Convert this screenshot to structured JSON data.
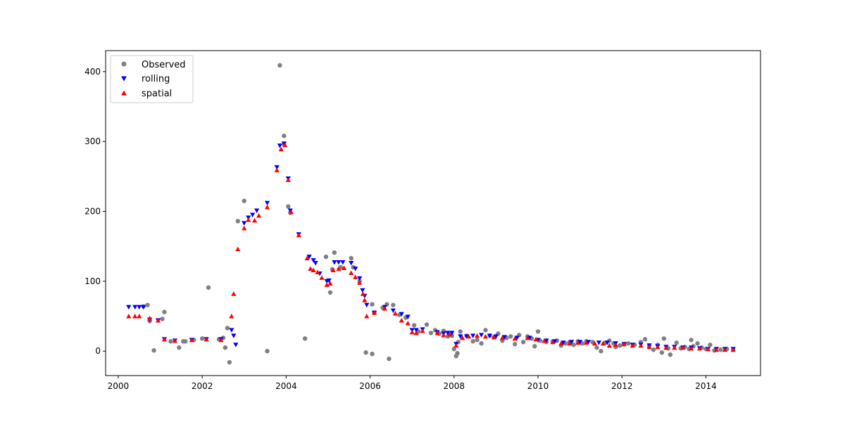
{
  "chart_data": {
    "type": "scatter",
    "title": "",
    "xlabel": "",
    "ylabel": "",
    "xlim": [
      1999.7,
      2015.3
    ],
    "ylim": [
      -35,
      430
    ],
    "xticks": [
      2000,
      2002,
      2004,
      2006,
      2008,
      2010,
      2012,
      2014
    ],
    "xtick_labels": [
      "2000",
      "2002",
      "2004",
      "2006",
      "2008",
      "2010",
      "2012",
      "2014"
    ],
    "yticks": [
      0,
      100,
      200,
      300,
      400
    ],
    "ytick_labels": [
      "0",
      "100",
      "200",
      "300",
      "400"
    ],
    "grid": false,
    "legend_position": "top-left",
    "series": [
      {
        "name": "Observed",
        "marker": "circle",
        "color": "#808080",
        "points": [
          [
            2000.7,
            66
          ],
          [
            2000.6,
            64
          ],
          [
            2000.75,
            43
          ],
          [
            2000.85,
            1
          ],
          [
            2001.05,
            46
          ],
          [
            2001.1,
            56
          ],
          [
            2001.25,
            14
          ],
          [
            2001.45,
            5
          ],
          [
            2001.55,
            14
          ],
          [
            2001.6,
            14
          ],
          [
            2001.8,
            16
          ],
          [
            2002.0,
            18
          ],
          [
            2002.15,
            91
          ],
          [
            2002.4,
            17
          ],
          [
            2002.5,
            19
          ],
          [
            2002.55,
            5
          ],
          [
            2002.6,
            33
          ],
          [
            2002.65,
            -16
          ],
          [
            2002.85,
            186
          ],
          [
            2003.0,
            215
          ],
          [
            2003.55,
            0
          ],
          [
            2003.85,
            409
          ],
          [
            2003.95,
            296
          ],
          [
            2003.95,
            308
          ],
          [
            2004.05,
            207
          ],
          [
            2004.1,
            198
          ],
          [
            2004.45,
            18
          ],
          [
            2004.95,
            135
          ],
          [
            2005.05,
            84
          ],
          [
            2005.1,
            117
          ],
          [
            2005.15,
            141
          ],
          [
            2005.3,
            120
          ],
          [
            2005.55,
            133
          ],
          [
            2005.6,
            120
          ],
          [
            2005.75,
            100
          ],
          [
            2005.9,
            -2
          ],
          [
            2006.05,
            -4
          ],
          [
            2006.05,
            67
          ],
          [
            2006.1,
            55
          ],
          [
            2006.3,
            62
          ],
          [
            2006.4,
            67
          ],
          [
            2006.45,
            -11
          ],
          [
            2006.55,
            66
          ],
          [
            2006.7,
            52
          ],
          [
            2006.85,
            48
          ],
          [
            2007.05,
            37
          ],
          [
            2007.15,
            28
          ],
          [
            2007.35,
            38
          ],
          [
            2007.45,
            26
          ],
          [
            2007.55,
            30
          ],
          [
            2007.65,
            25
          ],
          [
            2007.75,
            29
          ],
          [
            2007.85,
            21
          ],
          [
            2007.95,
            22
          ],
          [
            2008.0,
            3
          ],
          [
            2008.05,
            -7
          ],
          [
            2008.08,
            -3
          ],
          [
            2008.1,
            13
          ],
          [
            2008.15,
            28
          ],
          [
            2008.3,
            22
          ],
          [
            2008.45,
            14
          ],
          [
            2008.55,
            16
          ],
          [
            2008.65,
            11
          ],
          [
            2008.75,
            30
          ],
          [
            2008.85,
            22
          ],
          [
            2008.95,
            20
          ],
          [
            2009.05,
            25
          ],
          [
            2009.15,
            15
          ],
          [
            2009.25,
            19
          ],
          [
            2009.35,
            21
          ],
          [
            2009.45,
            10
          ],
          [
            2009.55,
            23
          ],
          [
            2009.65,
            13
          ],
          [
            2009.75,
            21
          ],
          [
            2009.85,
            18
          ],
          [
            2009.92,
            7
          ],
          [
            2010.0,
            28
          ],
          [
            2010.05,
            15
          ],
          [
            2010.2,
            13
          ],
          [
            2010.35,
            14
          ],
          [
            2010.45,
            15
          ],
          [
            2010.55,
            8
          ],
          [
            2010.65,
            11
          ],
          [
            2010.75,
            13
          ],
          [
            2010.85,
            9
          ],
          [
            2010.95,
            14
          ],
          [
            2011.05,
            11
          ],
          [
            2011.15,
            14
          ],
          [
            2011.3,
            13
          ],
          [
            2011.4,
            5
          ],
          [
            2011.5,
            0
          ],
          [
            2011.6,
            12
          ],
          [
            2011.7,
            15
          ],
          [
            2011.8,
            11
          ],
          [
            2011.85,
            6
          ],
          [
            2011.95,
            8
          ],
          [
            2012.05,
            10
          ],
          [
            2012.15,
            11
          ],
          [
            2012.3,
            9
          ],
          [
            2012.45,
            13
          ],
          [
            2012.55,
            17
          ],
          [
            2012.65,
            7
          ],
          [
            2012.75,
            2
          ],
          [
            2012.85,
            9
          ],
          [
            2012.95,
            -2
          ],
          [
            2013.0,
            18
          ],
          [
            2013.1,
            4
          ],
          [
            2013.15,
            -5
          ],
          [
            2013.3,
            12
          ],
          [
            2013.4,
            4
          ],
          [
            2013.5,
            6
          ],
          [
            2013.6,
            3
          ],
          [
            2013.65,
            16
          ],
          [
            2013.7,
            7
          ],
          [
            2013.8,
            11
          ],
          [
            2013.9,
            5
          ],
          [
            2014.0,
            3
          ],
          [
            2014.1,
            9
          ],
          [
            2014.2,
            1
          ],
          [
            2014.35,
            2
          ],
          [
            2014.5,
            3
          ],
          [
            2014.65,
            2
          ]
        ]
      },
      {
        "name": "rolling",
        "marker": "triangle-down",
        "color": "#0000ff",
        "points": [
          [
            2000.25,
            63
          ],
          [
            2000.4,
            63
          ],
          [
            2000.5,
            63
          ],
          [
            2000.6,
            63
          ],
          [
            2000.75,
            45
          ],
          [
            2000.95,
            44
          ],
          [
            2001.1,
            17
          ],
          [
            2001.35,
            15
          ],
          [
            2001.75,
            16
          ],
          [
            2002.1,
            17
          ],
          [
            2002.45,
            17
          ],
          [
            2002.7,
            30
          ],
          [
            2002.75,
            22
          ],
          [
            2002.8,
            9
          ],
          [
            2003.0,
            183
          ],
          [
            2003.1,
            191
          ],
          [
            2003.2,
            195
          ],
          [
            2003.3,
            201
          ],
          [
            2003.55,
            212
          ],
          [
            2003.78,
            263
          ],
          [
            2003.85,
            294
          ],
          [
            2003.95,
            297
          ],
          [
            2004.05,
            247
          ],
          [
            2004.1,
            201
          ],
          [
            2004.3,
            167
          ],
          [
            2004.55,
            135
          ],
          [
            2004.65,
            130
          ],
          [
            2004.7,
            126
          ],
          [
            2004.8,
            111
          ],
          [
            2004.97,
            100
          ],
          [
            2005.02,
            101
          ],
          [
            2005.15,
            127
          ],
          [
            2005.25,
            127
          ],
          [
            2005.35,
            127
          ],
          [
            2005.55,
            126
          ],
          [
            2005.65,
            118
          ],
          [
            2005.75,
            104
          ],
          [
            2005.82,
            87
          ],
          [
            2005.87,
            79
          ],
          [
            2005.92,
            66
          ],
          [
            2006.1,
            55
          ],
          [
            2006.35,
            63
          ],
          [
            2006.55,
            58
          ],
          [
            2006.75,
            53
          ],
          [
            2006.9,
            49
          ],
          [
            2007.0,
            30
          ],
          [
            2007.1,
            30
          ],
          [
            2007.25,
            31
          ],
          [
            2007.6,
            27
          ],
          [
            2007.75,
            25
          ],
          [
            2007.85,
            26
          ],
          [
            2007.95,
            26
          ],
          [
            2008.05,
            10
          ],
          [
            2008.15,
            21
          ],
          [
            2008.3,
            21
          ],
          [
            2008.45,
            22
          ],
          [
            2008.65,
            23
          ],
          [
            2008.85,
            22
          ],
          [
            2009.0,
            21
          ],
          [
            2009.2,
            20
          ],
          [
            2009.5,
            19
          ],
          [
            2009.8,
            19
          ],
          [
            2010.0,
            16
          ],
          [
            2010.2,
            15
          ],
          [
            2010.4,
            14
          ],
          [
            2010.6,
            12
          ],
          [
            2010.8,
            13
          ],
          [
            2011.0,
            13
          ],
          [
            2011.2,
            13
          ],
          [
            2011.45,
            12
          ],
          [
            2011.65,
            12
          ],
          [
            2011.85,
            11
          ],
          [
            2012.05,
            10
          ],
          [
            2012.25,
            9
          ],
          [
            2012.45,
            9
          ],
          [
            2012.65,
            8
          ],
          [
            2012.85,
            7
          ],
          [
            2013.05,
            6
          ],
          [
            2013.25,
            6
          ],
          [
            2013.45,
            5
          ],
          [
            2013.65,
            5
          ],
          [
            2013.85,
            4
          ],
          [
            2014.05,
            3
          ],
          [
            2014.25,
            3
          ],
          [
            2014.45,
            3
          ],
          [
            2014.65,
            3
          ]
        ]
      },
      {
        "name": "spatial",
        "marker": "triangle-up",
        "color": "#ff0000",
        "points": [
          [
            2000.25,
            50
          ],
          [
            2000.4,
            50
          ],
          [
            2000.5,
            50
          ],
          [
            2000.75,
            47
          ],
          [
            2000.95,
            44
          ],
          [
            2001.1,
            17
          ],
          [
            2001.35,
            15
          ],
          [
            2001.75,
            16
          ],
          [
            2002.1,
            17
          ],
          [
            2002.45,
            16
          ],
          [
            2002.7,
            50
          ],
          [
            2002.75,
            82
          ],
          [
            2002.85,
            146
          ],
          [
            2003.0,
            176
          ],
          [
            2003.1,
            188
          ],
          [
            2003.25,
            187
          ],
          [
            2003.35,
            194
          ],
          [
            2003.55,
            206
          ],
          [
            2003.78,
            259
          ],
          [
            2003.88,
            289
          ],
          [
            2003.97,
            295
          ],
          [
            2004.05,
            245
          ],
          [
            2004.12,
            199
          ],
          [
            2004.3,
            166
          ],
          [
            2004.5,
            133
          ],
          [
            2004.58,
            118
          ],
          [
            2004.65,
            116
          ],
          [
            2004.75,
            113
          ],
          [
            2004.85,
            105
          ],
          [
            2004.97,
            95
          ],
          [
            2005.05,
            97
          ],
          [
            2005.12,
            116
          ],
          [
            2005.25,
            118
          ],
          [
            2005.38,
            119
          ],
          [
            2005.55,
            112
          ],
          [
            2005.65,
            106
          ],
          [
            2005.75,
            98
          ],
          [
            2005.83,
            82
          ],
          [
            2005.87,
            73
          ],
          [
            2005.92,
            50
          ],
          [
            2006.1,
            55
          ],
          [
            2006.35,
            61
          ],
          [
            2006.6,
            54
          ],
          [
            2006.75,
            44
          ],
          [
            2006.9,
            40
          ],
          [
            2007.0,
            27
          ],
          [
            2007.1,
            26
          ],
          [
            2007.25,
            29
          ],
          [
            2007.6,
            26
          ],
          [
            2007.75,
            23
          ],
          [
            2007.9,
            24
          ],
          [
            2008.05,
            8
          ],
          [
            2008.2,
            19
          ],
          [
            2008.35,
            21
          ],
          [
            2008.55,
            22
          ],
          [
            2008.75,
            21
          ],
          [
            2008.95,
            20
          ],
          [
            2009.15,
            19
          ],
          [
            2009.45,
            18
          ],
          [
            2009.75,
            19
          ],
          [
            2009.95,
            17
          ],
          [
            2010.15,
            15
          ],
          [
            2010.35,
            13
          ],
          [
            2010.55,
            11
          ],
          [
            2010.75,
            11
          ],
          [
            2010.95,
            12
          ],
          [
            2011.15,
            12
          ],
          [
            2011.35,
            11
          ],
          [
            2011.55,
            11
          ],
          [
            2011.7,
            8
          ],
          [
            2011.85,
            9
          ],
          [
            2012.05,
            10
          ],
          [
            2012.25,
            8
          ],
          [
            2012.45,
            8
          ],
          [
            2012.65,
            6
          ],
          [
            2012.85,
            6
          ],
          [
            2013.05,
            5
          ],
          [
            2013.25,
            5
          ],
          [
            2013.45,
            5
          ],
          [
            2013.65,
            4
          ],
          [
            2013.85,
            4
          ],
          [
            2014.05,
            3
          ],
          [
            2014.25,
            2
          ],
          [
            2014.45,
            2
          ],
          [
            2014.65,
            2
          ]
        ]
      }
    ]
  }
}
